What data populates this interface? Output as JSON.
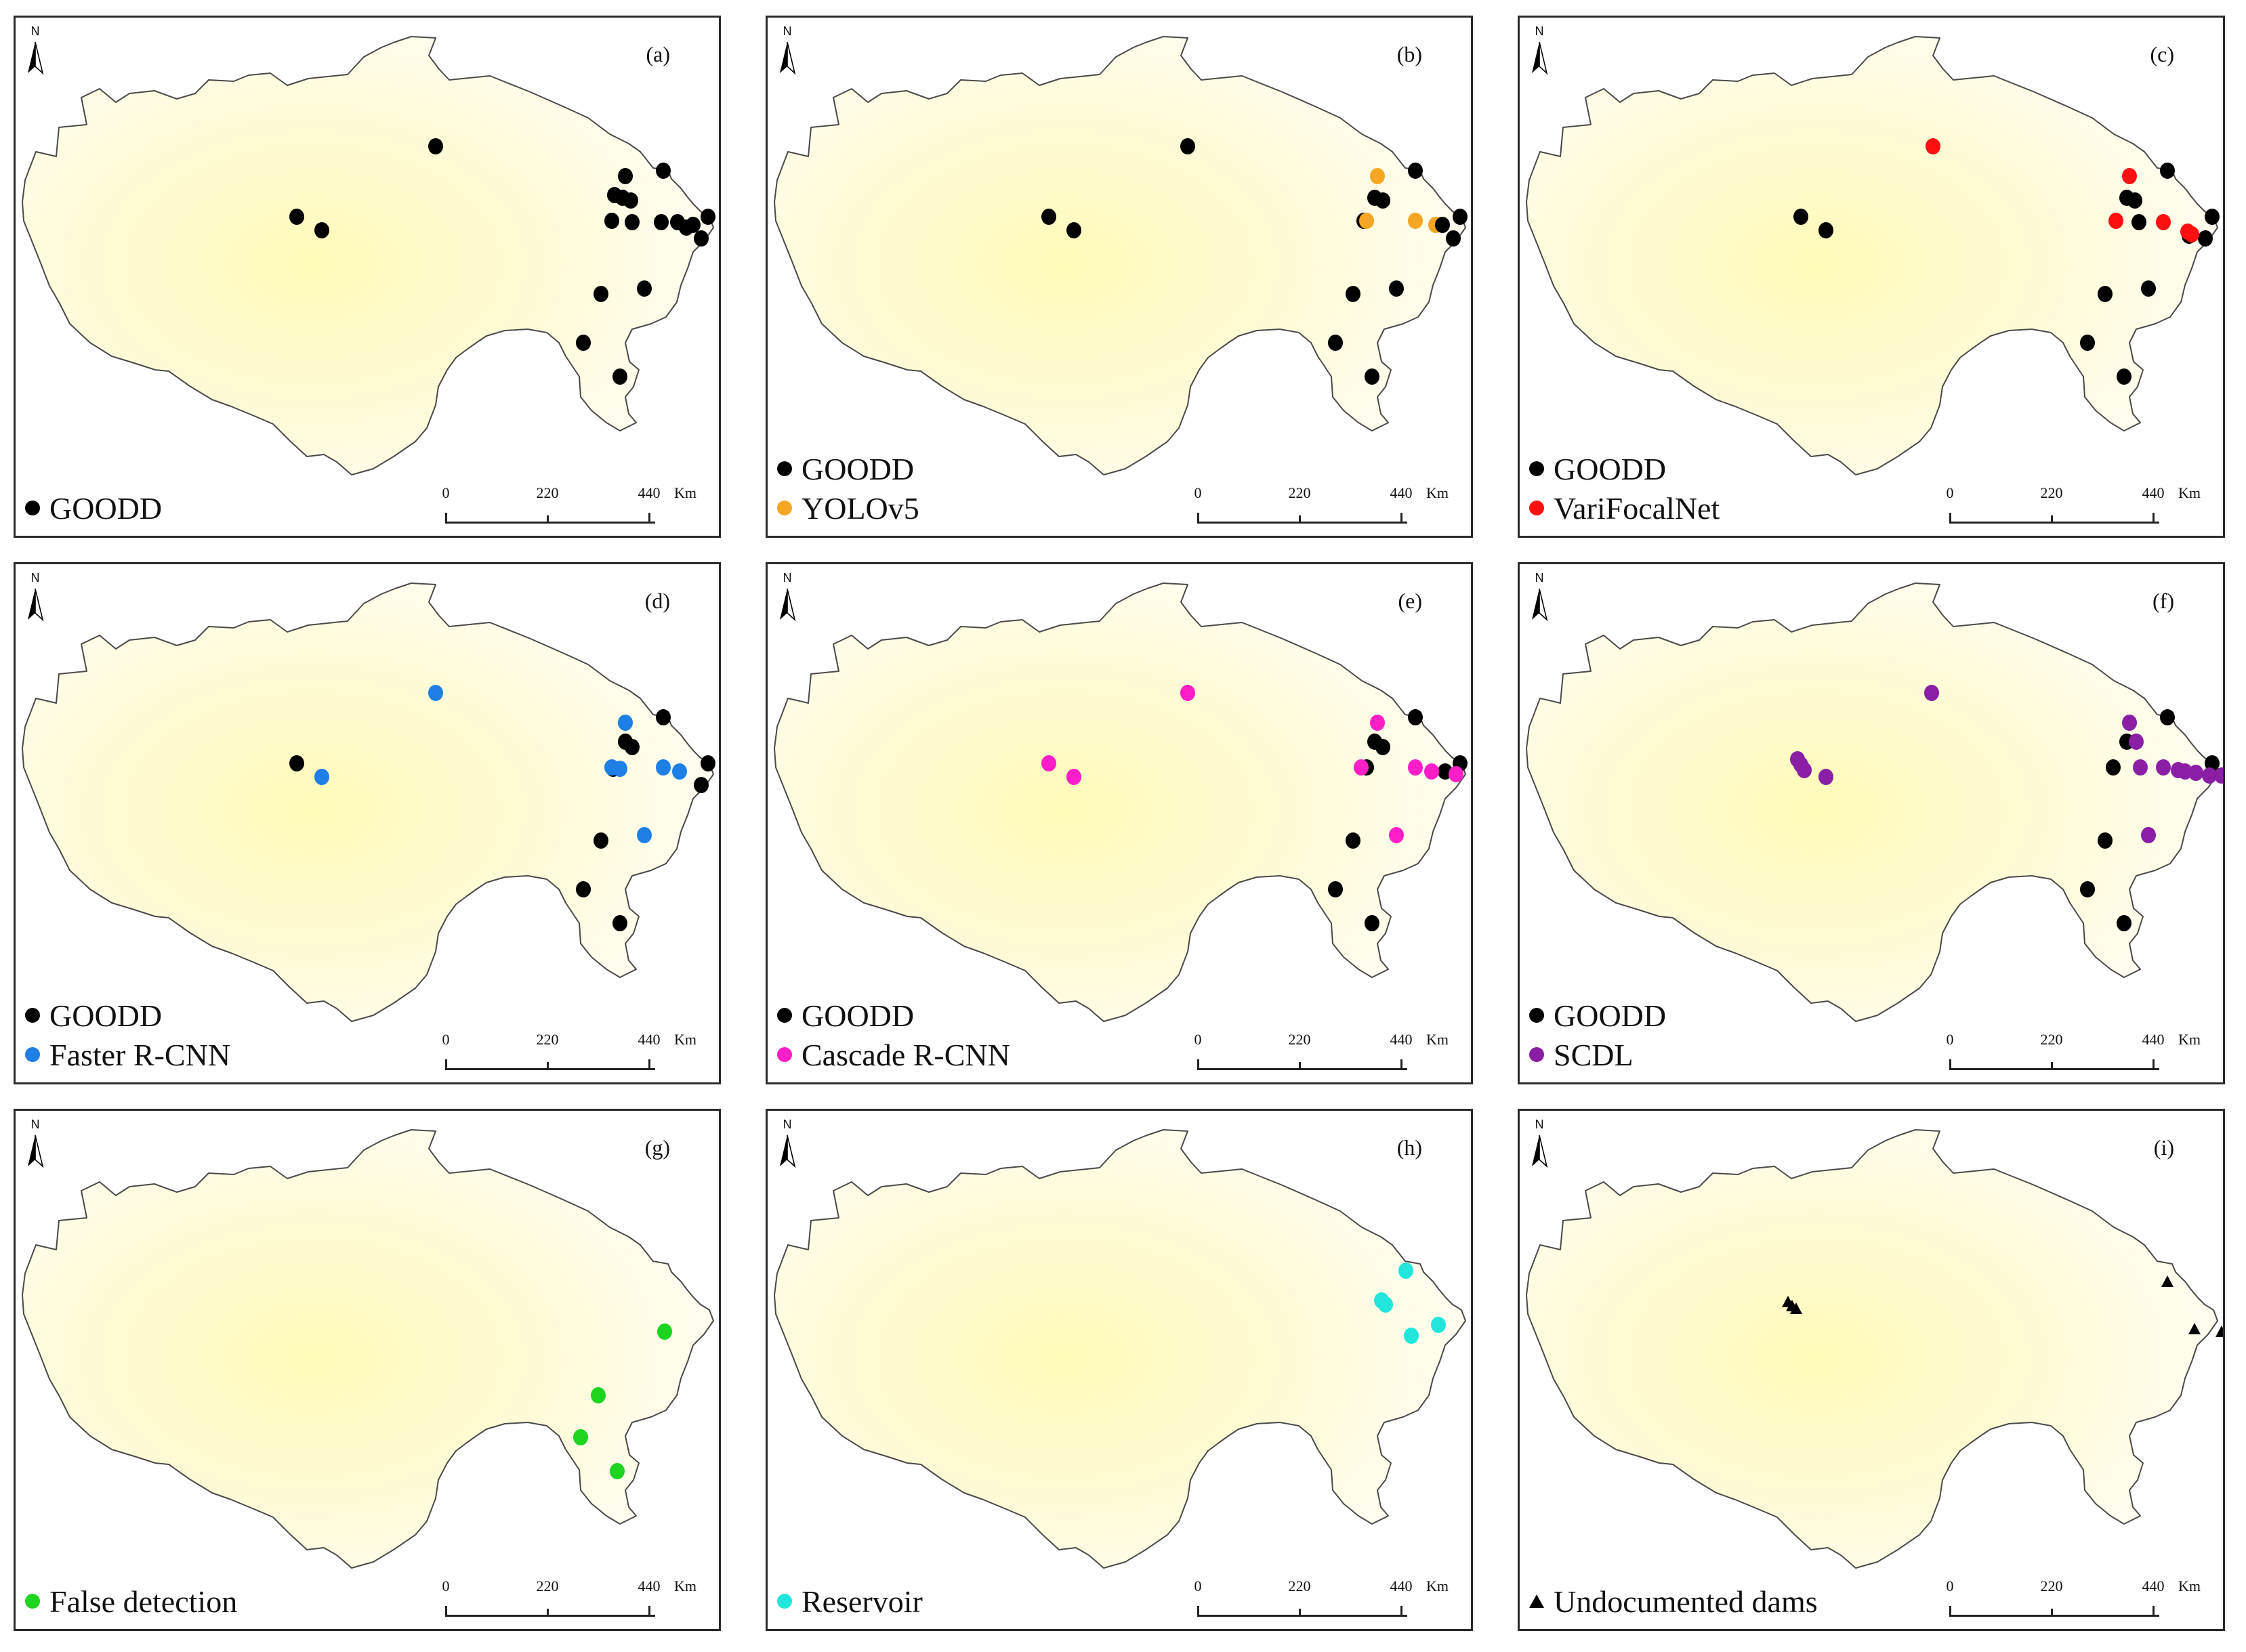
{
  "figure": {
    "north_letter": "N",
    "scale": {
      "ticks": [
        "0",
        "220",
        "440"
      ],
      "unit": "Km"
    },
    "panels": [
      {
        "label": "(a)",
        "legend": [
          {
            "marker": "circle",
            "color": "#000000",
            "text": "GOODD"
          }
        ]
      },
      {
        "label": "(b)",
        "legend": [
          {
            "marker": "circle",
            "color": "#000000",
            "text": "GOODD"
          },
          {
            "marker": "circle",
            "color": "#F5A623",
            "text": "YOLOv5"
          }
        ]
      },
      {
        "label": "(c)",
        "legend": [
          {
            "marker": "circle",
            "color": "#000000",
            "text": "GOODD"
          },
          {
            "marker": "circle",
            "color": "#FF1010",
            "text": "VariFocalNet"
          }
        ]
      },
      {
        "label": "(d)",
        "legend": [
          {
            "marker": "circle",
            "color": "#000000",
            "text": "GOODD"
          },
          {
            "marker": "circle",
            "color": "#1E7FE6",
            "text": "Faster R-CNN"
          }
        ]
      },
      {
        "label": "(e)",
        "legend": [
          {
            "marker": "circle",
            "color": "#000000",
            "text": "GOODD"
          },
          {
            "marker": "circle",
            "color": "#FF1EC8",
            "text": "Cascade R-CNN"
          }
        ]
      },
      {
        "label": "(f)",
        "legend": [
          {
            "marker": "circle",
            "color": "#000000",
            "text": "GOODD"
          },
          {
            "marker": "circle",
            "color": "#8A1FA6",
            "text": "SCDL"
          }
        ]
      },
      {
        "label": "(g)",
        "legend": [
          {
            "marker": "circle",
            "color": "#1ED41E",
            "text": "False detection"
          }
        ]
      },
      {
        "label": "(h)",
        "legend": [
          {
            "marker": "circle",
            "color": "#22E6DC",
            "text": "Reservoir"
          }
        ]
      },
      {
        "label": "(i)",
        "legend": [
          {
            "marker": "triangle",
            "color": "#000000",
            "text": "Undocumented dams"
          }
        ]
      }
    ]
  }
}
